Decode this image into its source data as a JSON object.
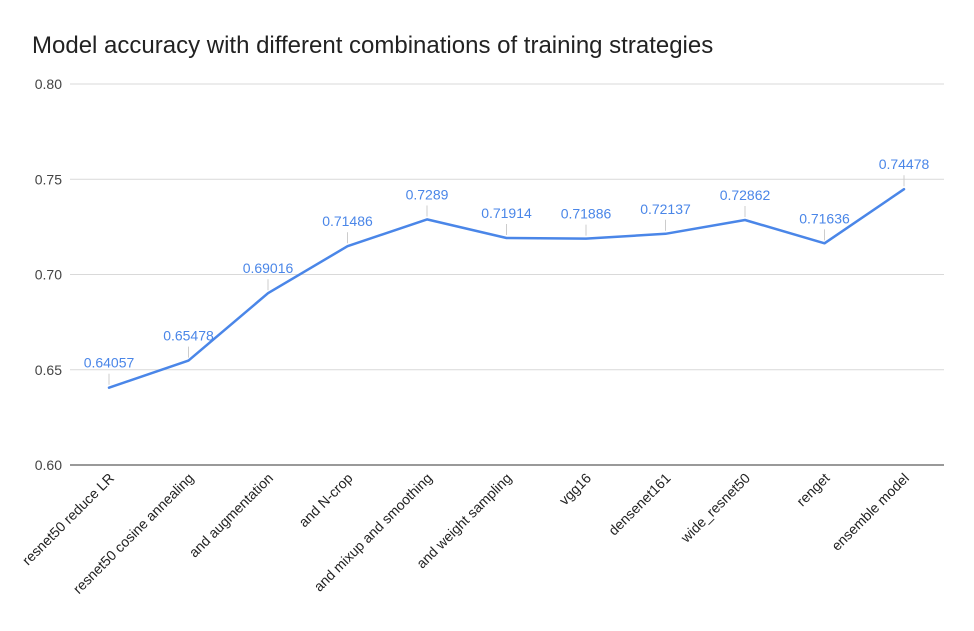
{
  "chart_data": {
    "type": "line",
    "title": "Model accuracy with different combinations of training strategies",
    "categories": [
      "resnet50 reduce LR",
      "resnet50 cosine annealing",
      "and augmentation",
      "and N-crop",
      "and mixup and smoothing",
      "and weight sampling",
      "vgg16",
      "densenet161",
      "wide_resnet50",
      "renget",
      "ensemble model"
    ],
    "series": [
      {
        "values": [
          0.64057,
          0.65478,
          0.69016,
          0.71486,
          0.7289,
          0.71914,
          0.71886,
          0.72137,
          0.72862,
          0.71636,
          0.74478
        ],
        "data_labels": [
          "0.64057",
          "0.65478",
          "0.69016",
          "0.71486",
          "0.7289",
          "0.71914",
          "0.71886",
          "0.72137",
          "0.72862",
          "0.71636",
          "0.74478"
        ],
        "color": "#4a86e8"
      }
    ],
    "ylim": [
      0.6,
      0.8
    ],
    "yticks": [
      "0.60",
      "0.65",
      "0.70",
      "0.75",
      "0.80"
    ],
    "ytick_values": [
      0.6,
      0.65,
      0.7,
      0.75,
      0.8
    ],
    "xlabel": "",
    "ylabel": "",
    "grid": true,
    "legend": "none"
  }
}
